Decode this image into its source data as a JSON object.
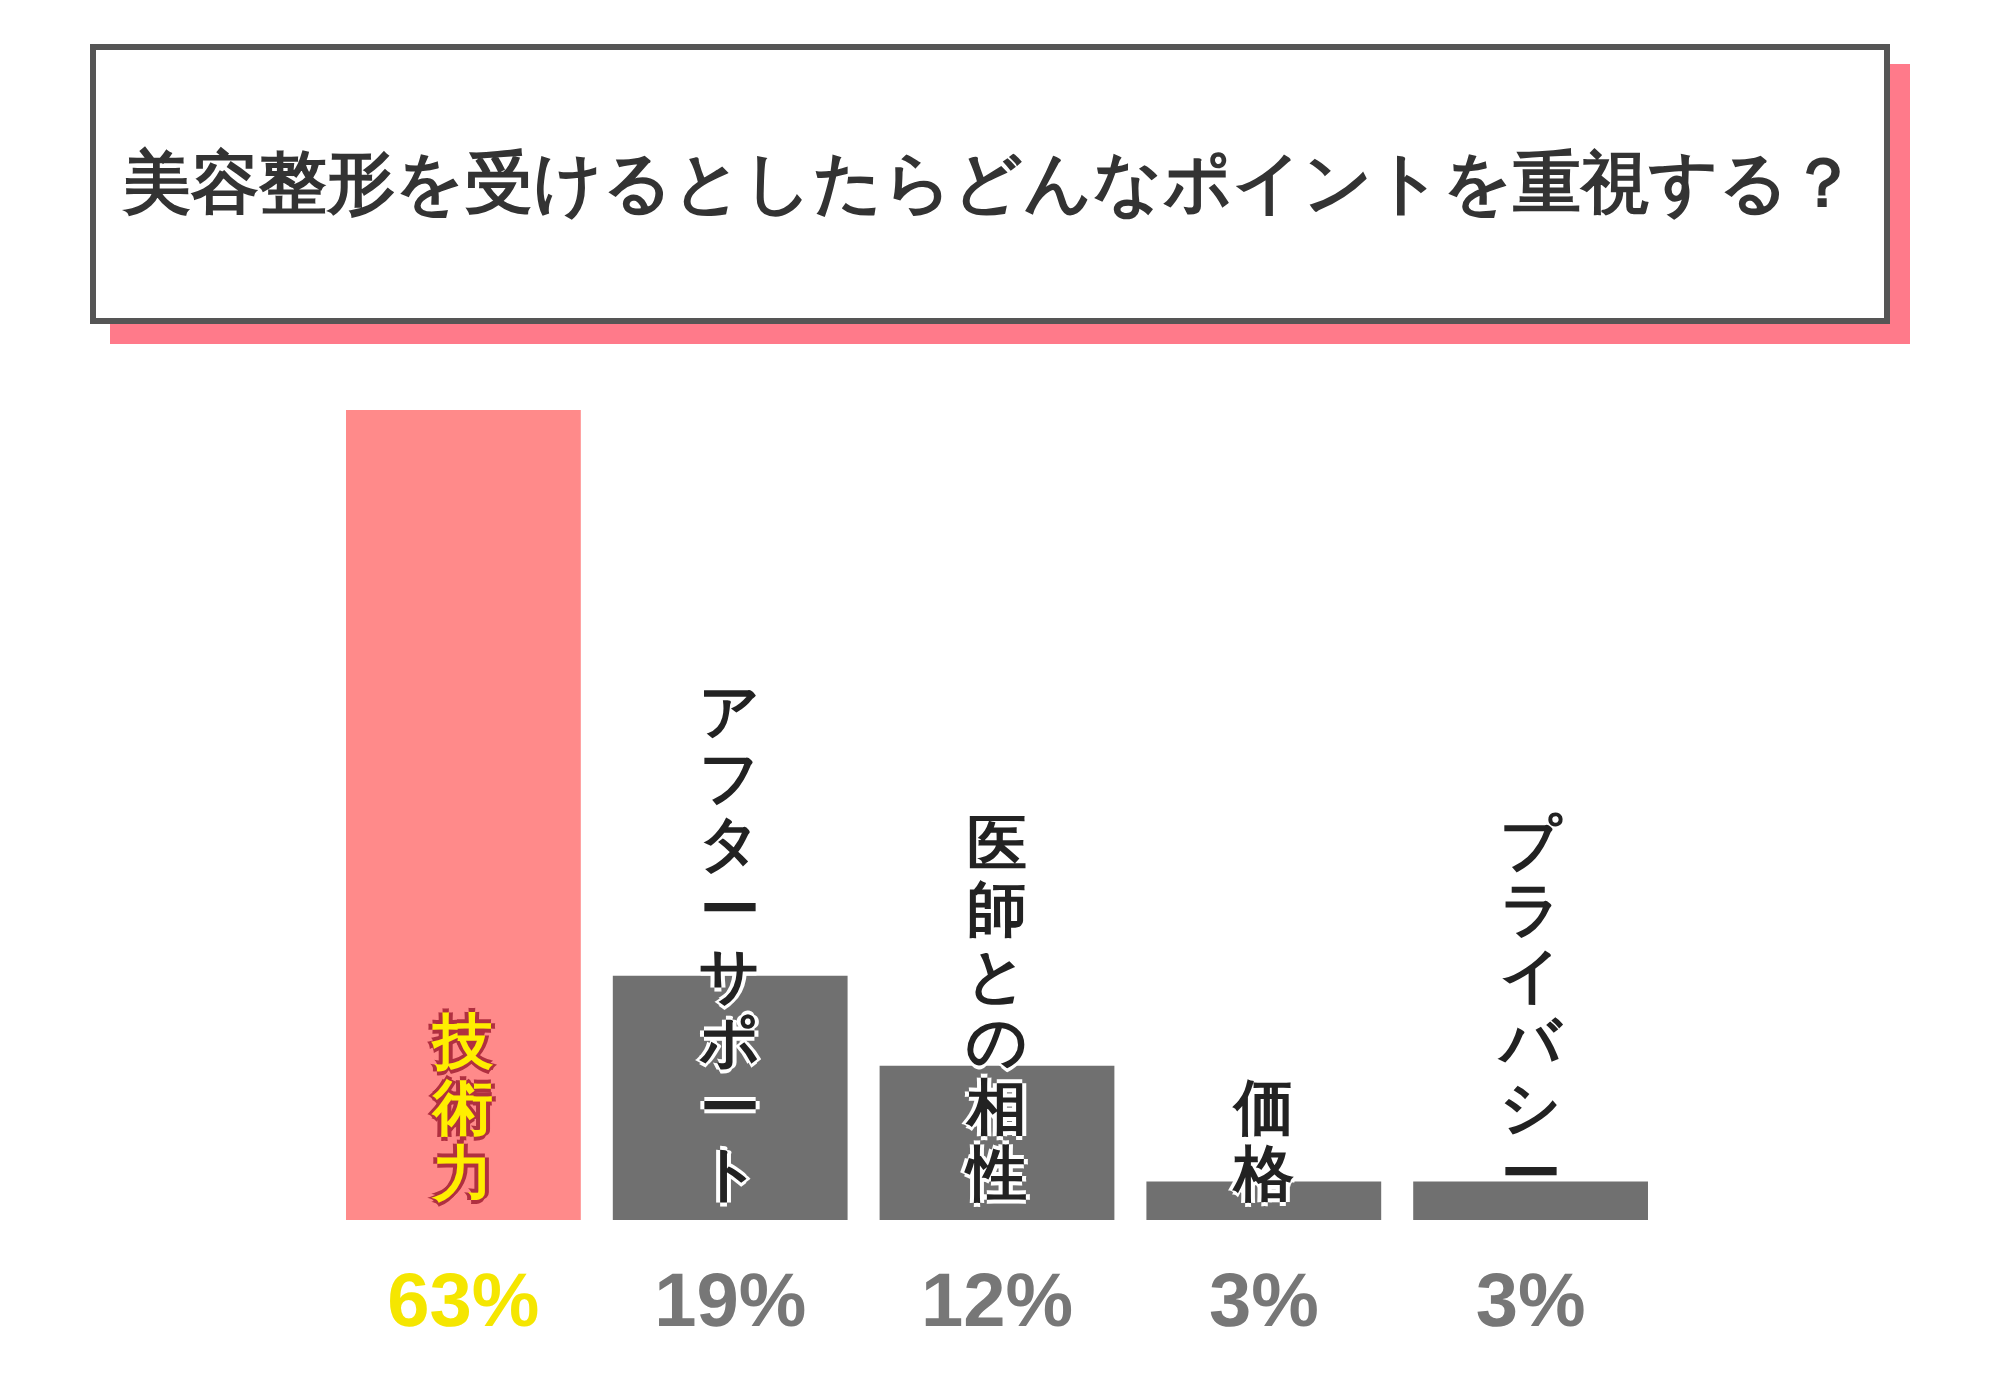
{
  "chart_data": {
    "type": "bar",
    "title": "美容整形を受けるとしたらどんなポイントを重視する？",
    "categories": [
      "技術力",
      "アフターサポート",
      "医師との相性",
      "価格",
      "プライバシー"
    ],
    "values": [
      63,
      19,
      12,
      3,
      3
    ],
    "colors": [
      "#ff8a8a",
      "#707070",
      "#707070",
      "#707070",
      "#707070"
    ],
    "value_labels": [
      "63%",
      "19%",
      "12%",
      "3%",
      "3%"
    ]
  }
}
